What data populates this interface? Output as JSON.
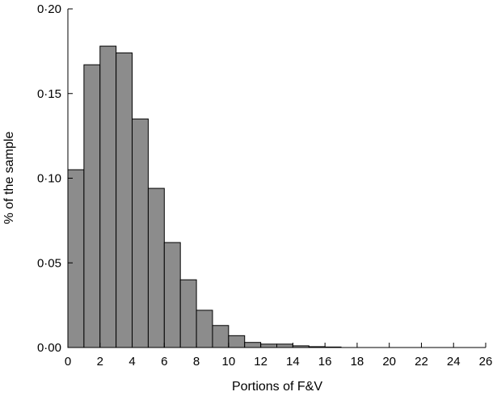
{
  "chart_data": {
    "type": "bar",
    "title": "",
    "xlabel": "Portions of F&V",
    "ylabel": "% of the sample",
    "xlim": [
      0,
      26
    ],
    "ylim": [
      0,
      0.2
    ],
    "x_ticks": [
      0,
      2,
      4,
      6,
      8,
      10,
      12,
      14,
      16,
      18,
      20,
      22,
      24,
      26
    ],
    "x_tick_labels": [
      "0",
      "2",
      "4",
      "6",
      "8",
      "10",
      "12",
      "14",
      "16",
      "18",
      "20",
      "22",
      "24",
      "26"
    ],
    "y_ticks": [
      0,
      0.05,
      0.1,
      0.15,
      0.2
    ],
    "y_tick_labels": [
      "0·00",
      "0·05",
      "0·10",
      "0·15",
      "0·20"
    ],
    "bin_width": 1,
    "bins": [
      {
        "x0": 0,
        "value": 0.105
      },
      {
        "x0": 1,
        "value": 0.167
      },
      {
        "x0": 2,
        "value": 0.178
      },
      {
        "x0": 3,
        "value": 0.174
      },
      {
        "x0": 4,
        "value": 0.135
      },
      {
        "x0": 5,
        "value": 0.094
      },
      {
        "x0": 6,
        "value": 0.062
      },
      {
        "x0": 7,
        "value": 0.04
      },
      {
        "x0": 8,
        "value": 0.022
      },
      {
        "x0": 9,
        "value": 0.013
      },
      {
        "x0": 10,
        "value": 0.007
      },
      {
        "x0": 11,
        "value": 0.003
      },
      {
        "x0": 12,
        "value": 0.002
      },
      {
        "x0": 13,
        "value": 0.002
      },
      {
        "x0": 14,
        "value": 0.001
      },
      {
        "x0": 15,
        "value": 0.0005
      },
      {
        "x0": 16,
        "value": 0.0003
      }
    ],
    "bar_color": "#8c8c8c",
    "grid": false,
    "legend": "none"
  }
}
